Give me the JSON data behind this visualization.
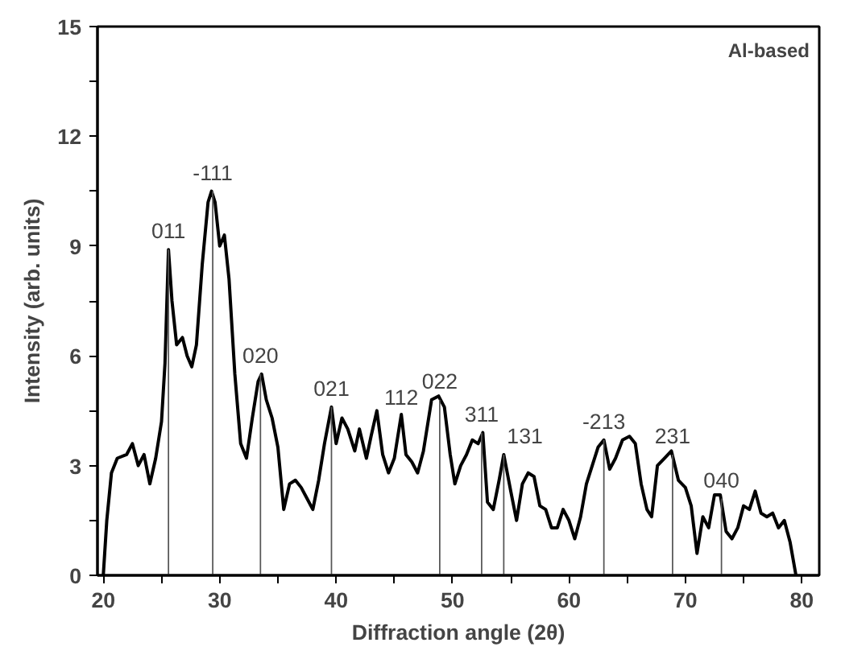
{
  "chart_data": {
    "type": "line",
    "xlabel": "Diffraction angle (2θ)",
    "ylabel": "Intensity (arb. units)",
    "xlim": [
      19.5,
      81.5
    ],
    "ylim": [
      0,
      15
    ],
    "xticks": [
      20,
      {
        "value": 25,
        "label": null
      },
      30,
      {
        "value": 35,
        "label": null
      },
      40,
      {
        "value": 45,
        "label": null
      },
      50,
      {
        "value": 55,
        "label": null
      },
      60,
      {
        "value": 65,
        "label": null
      },
      70,
      {
        "value": 75,
        "label": null
      },
      80
    ],
    "yticks": [
      0,
      {
        "value": 1.5,
        "label": null
      },
      3,
      {
        "value": 4.5,
        "label": null
      },
      6,
      {
        "value": 7.5,
        "label": null
      },
      9,
      {
        "value": 10.5,
        "label": null
      },
      12,
      {
        "value": 13.5,
        "label": null
      },
      15
    ],
    "grid": false,
    "series": [
      {
        "color": "#000000",
        "x": [
          20,
          20.3,
          20.7,
          21.2,
          22,
          22.5,
          23,
          23.5,
          24,
          24.5,
          25,
          25.3,
          25.6,
          25.9,
          26.3,
          26.8,
          27.2,
          27.6,
          28,
          28.5,
          29,
          29.3,
          29.6,
          30,
          30.4,
          30.8,
          31.3,
          31.8,
          32.3,
          32.8,
          33.3,
          33.6,
          34,
          34.5,
          35,
          35.5,
          36,
          36.5,
          37,
          37.5,
          38,
          38.5,
          39,
          39.6,
          40,
          40.5,
          41,
          41.6,
          42,
          42.6,
          43,
          43.5,
          44,
          44.5,
          45,
          45.6,
          46,
          46.5,
          47,
          47.5,
          48.2,
          48.8,
          49.3,
          49.8,
          50.2,
          50.7,
          51.2,
          51.7,
          52.2,
          52.6,
          53,
          53.5,
          54,
          54.4,
          55,
          55.5,
          56,
          56.5,
          57,
          57.5,
          58,
          58.5,
          59,
          59.5,
          60,
          60.5,
          61,
          61.5,
          62,
          62.5,
          63,
          63.5,
          64,
          64.6,
          65.2,
          65.7,
          66.2,
          66.7,
          67.1,
          67.6,
          68.2,
          68.8,
          69.4,
          70,
          70.5,
          71,
          71.5,
          72,
          72.5,
          73,
          73.5,
          74,
          74.5,
          75,
          75.5,
          76,
          76.5,
          77,
          77.5,
          78,
          78.5,
          79,
          79.5
        ],
        "values": [
          0,
          1.5,
          2.8,
          3.2,
          3.3,
          3.6,
          3.0,
          3.3,
          2.5,
          3.2,
          4.2,
          5.8,
          8.9,
          7.5,
          6.3,
          6.5,
          6.0,
          5.7,
          6.3,
          8.5,
          10.2,
          10.5,
          10.2,
          9.0,
          9.3,
          8.1,
          5.5,
          3.6,
          3.2,
          4.3,
          5.3,
          5.5,
          4.8,
          4.3,
          3.5,
          1.8,
          2.5,
          2.6,
          2.4,
          2.1,
          1.8,
          2.6,
          3.6,
          4.6,
          3.6,
          4.3,
          4.0,
          3.4,
          4.0,
          3.2,
          3.8,
          4.5,
          3.3,
          2.8,
          3.2,
          4.4,
          3.3,
          3.1,
          2.8,
          3.4,
          4.8,
          4.9,
          4.6,
          3.3,
          2.5,
          3.0,
          3.3,
          3.7,
          3.6,
          3.9,
          2.0,
          1.8,
          2.6,
          3.3,
          2.3,
          1.5,
          2.5,
          2.8,
          2.7,
          1.9,
          1.8,
          1.3,
          1.3,
          1.8,
          1.5,
          1.0,
          1.6,
          2.5,
          3.0,
          3.5,
          3.7,
          2.9,
          3.2,
          3.7,
          3.8,
          3.6,
          2.5,
          1.8,
          1.6,
          3.0,
          3.2,
          3.4,
          2.6,
          2.4,
          1.9,
          0.6,
          1.6,
          1.3,
          2.2,
          2.2,
          1.2,
          1.0,
          1.3,
          1.9,
          1.8,
          2.3,
          1.7,
          1.6,
          1.7,
          1.3,
          1.5,
          0.9,
          0
        ]
      },
      {
        "type": "bar",
        "name": "011",
        "color": "#555555",
        "x": [
          25.6
        ],
        "values": [
          8.9
        ]
      },
      {
        "type": "bar",
        "name": "-111",
        "color": "#555555",
        "x": [
          29.4
        ],
        "values": [
          10.5
        ]
      },
      {
        "type": "bar",
        "name": "020",
        "color": "#555555",
        "x": [
          33.5
        ],
        "values": [
          5.5
        ]
      },
      {
        "type": "bar",
        "name": "021",
        "color": "#555555",
        "x": [
          39.6
        ],
        "values": [
          4.6
        ]
      },
      {
        "type": "bar",
        "name": "022",
        "color": "#555555",
        "x": [
          48.9
        ],
        "values": [
          4.8
        ]
      },
      {
        "type": "bar",
        "name": "311",
        "color": "#555555",
        "x": [
          52.5
        ],
        "values": [
          3.9
        ]
      },
      {
        "type": "bar",
        "name": "131",
        "color": "#555555",
        "x": [
          54.4
        ],
        "values": [
          3.3
        ]
      },
      {
        "type": "bar",
        "name": "-213",
        "color": "#555555",
        "x": [
          63.0
        ],
        "values": [
          3.7
        ]
      },
      {
        "type": "bar",
        "name": "231",
        "color": "#555555",
        "x": [
          68.9
        ],
        "values": [
          3.3
        ]
      },
      {
        "type": "bar",
        "name": "040",
        "color": "#555555",
        "x": [
          73.1
        ],
        "values": [
          2.1
        ]
      }
    ],
    "annotations": [
      {
        "text": "112",
        "x": 45.6,
        "y": 4.4
      },
      "Al-based"
    ]
  }
}
